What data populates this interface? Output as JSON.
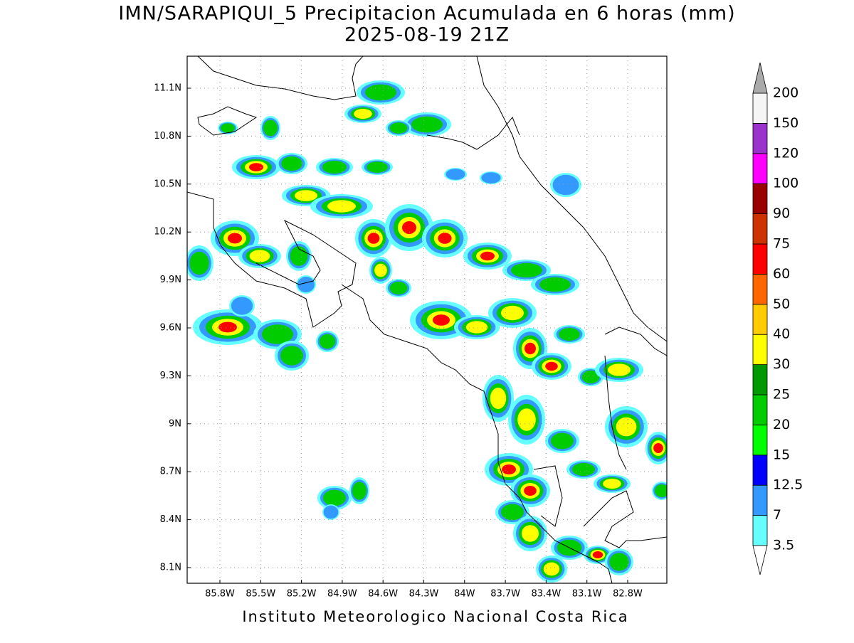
{
  "title": "IMN/SARAPIQUI_5 Precipitacion Acumulada en 6 horas (mm)",
  "subtitle": "2025-08-19 21Z",
  "map": {
    "x_labels": [
      "85.8W",
      "85.5W",
      "85.2W",
      "84.9W",
      "84.6W",
      "84.3W",
      "84W",
      "83.7W",
      "83.4W",
      "83.1W",
      "82.8W"
    ],
    "y_labels": [
      "11.1N",
      "10.8N",
      "10.5N",
      "10.2N",
      "9.9N",
      "9.6N",
      "9.3N",
      "9N",
      "8.7N",
      "8.4N",
      "8.1N"
    ]
  },
  "colorbar": {
    "levels": [
      3.5,
      7,
      12.5,
      15,
      20,
      25,
      30,
      40,
      50,
      60,
      75,
      90,
      100,
      120,
      150,
      200
    ],
    "colors": [
      "#66ffff",
      "#3399ff",
      "#0000ff",
      "#00ff00",
      "#00cc00",
      "#009900",
      "#ffff00",
      "#ffcc00",
      "#ff6600",
      "#ff0000",
      "#cc3300",
      "#990000",
      "#ff00ff",
      "#9933cc",
      "#f5f5f5"
    ],
    "under_color": "#ffffff",
    "over_color": "#aaaaaa"
  },
  "footer": "Instituto Meteorologico Nacional Costa Rica"
}
